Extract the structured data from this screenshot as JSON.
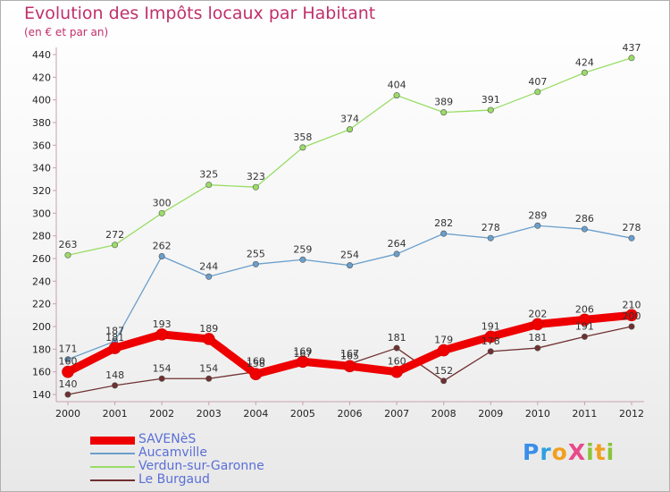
{
  "title": "Evolution des Impôts locaux par Habitant",
  "subtitle": "(en € et par an)",
  "logo": {
    "text": "ProXiti",
    "letters": [
      {
        "ch": "P",
        "color": "#3a8ee8"
      },
      {
        "ch": "r",
        "color": "#2fa0e0"
      },
      {
        "ch": "o",
        "color": "#f0a020"
      },
      {
        "ch": "X",
        "color": "#e84a8a"
      },
      {
        "ch": "i",
        "color": "#8ac43a"
      },
      {
        "ch": "t",
        "color": "#f0a020"
      },
      {
        "ch": "i",
        "color": "#8ac43a"
      }
    ]
  },
  "chart_data": {
    "type": "line",
    "title": "Evolution des Impôts locaux par Habitant",
    "subtitle": "(en € et par an)",
    "xlabel": "",
    "ylabel": "",
    "categories": [
      "2000",
      "2001",
      "2002",
      "2003",
      "2004",
      "2005",
      "2006",
      "2007",
      "2008",
      "2009",
      "2010",
      "2011",
      "2012"
    ],
    "ylim": [
      140,
      440
    ],
    "yticks": [
      140,
      160,
      180,
      200,
      220,
      240,
      260,
      280,
      300,
      320,
      340,
      360,
      380,
      400,
      420,
      440
    ],
    "grid": "off",
    "legend_position": "bottom-left",
    "series": [
      {
        "name": "SAVENèS",
        "color": "#ee0000",
        "values": [
          160,
          181,
          193,
          189,
          158,
          169,
          165,
          160,
          179,
          191,
          202,
          206,
          210
        ]
      },
      {
        "name": "Aucamville",
        "color": "#6a9fcc",
        "values": [
          171,
          187,
          262,
          244,
          255,
          259,
          254,
          264,
          282,
          278,
          289,
          286,
          278
        ]
      },
      {
        "name": "Verdun-sur-Garonne",
        "color": "#99dd66",
        "values": [
          263,
          272,
          300,
          325,
          323,
          358,
          374,
          404,
          389,
          391,
          407,
          424,
          437
        ]
      },
      {
        "name": "Le Burgaud",
        "color": "#703030",
        "values": [
          140,
          148,
          154,
          154,
          160,
          167,
          167,
          181,
          152,
          178,
          181,
          191,
          200
        ]
      }
    ]
  }
}
